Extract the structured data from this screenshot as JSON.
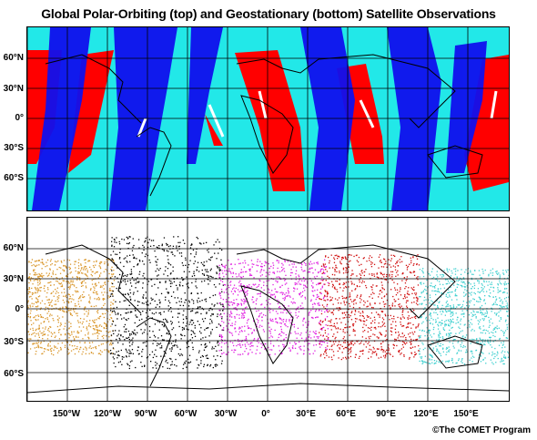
{
  "title": "Global Polar-Orbiting (top) and Geostationary (bottom) Satellite Observations",
  "top_panel": {
    "lat_labels": [
      "60°N",
      "30°N",
      "0°",
      "30°S",
      "60°S"
    ],
    "colors": {
      "background": "#22e8e8",
      "swath_red": "#ff0000",
      "swath_blue": "#1010ee",
      "coast": "#000000"
    }
  },
  "bottom_panel": {
    "lat_labels": [
      "60°N",
      "30°N",
      "0°",
      "30°S",
      "60°S"
    ],
    "colors": {
      "orange": "#d9962a",
      "black": "#000000",
      "magenta": "#e020e0",
      "red": "#d01010",
      "cyan": "#40d0d0"
    }
  },
  "lon_labels": [
    "150°W",
    "120°W",
    "90°W",
    "60°W",
    "30°W",
    "0°",
    "30°E",
    "60°E",
    "90°E",
    "120°E",
    "150°E"
  ],
  "credit": "©The COMET Program"
}
